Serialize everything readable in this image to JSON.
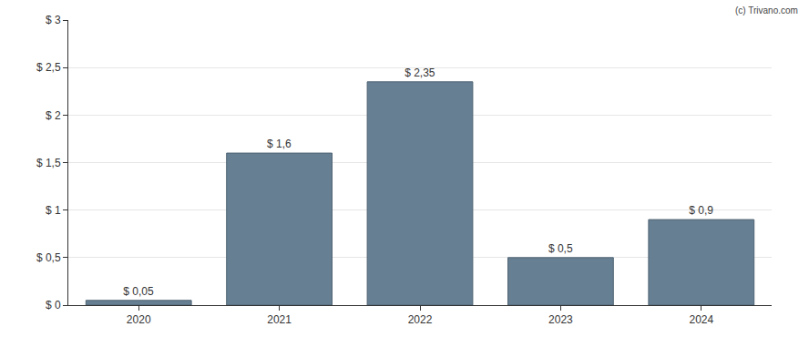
{
  "chart_data": {
    "type": "bar",
    "categories": [
      "2020",
      "2021",
      "2022",
      "2023",
      "2024"
    ],
    "values": [
      0.05,
      1.6,
      2.35,
      0.5,
      0.9
    ],
    "value_labels": [
      "$ 0,05",
      "$ 1,6",
      "$ 2,35",
      "$ 0,5",
      "$ 0,9"
    ],
    "data_labels": true,
    "color": "#667f92",
    "ylim": [
      0,
      3
    ],
    "yticks": [
      {
        "value": 0,
        "label": "$ 0"
      },
      {
        "value": 0.5,
        "label": "$ 0,5"
      },
      {
        "value": 1,
        "label": "$ 1"
      },
      {
        "value": 1.5,
        "label": "$ 1,5"
      },
      {
        "value": 2,
        "label": "$ 2"
      },
      {
        "value": 2.5,
        "label": "$ 2,5"
      },
      {
        "value": 3,
        "label": "$ 3"
      }
    ],
    "grid": true,
    "annotations": [
      {
        "text": "(c) Trivano.com"
      }
    ]
  }
}
